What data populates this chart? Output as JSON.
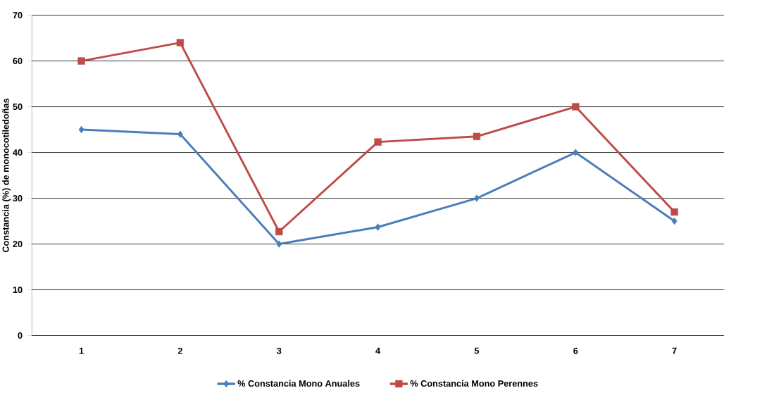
{
  "chart_data": {
    "type": "line",
    "ylabel": "Constancia (%) de monocotiledoñas",
    "categories": [
      "1",
      "2",
      "3",
      "4",
      "5",
      "6",
      "7"
    ],
    "series": [
      {
        "name": "% Constancia  Mono Anuales",
        "color": "#4a7ebb",
        "marker": "diamond",
        "values": [
          45,
          44,
          20,
          23.7,
          30,
          40,
          25
        ]
      },
      {
        "name": "% Constancia  Mono Perennes",
        "color": "#be4b48",
        "marker": "square",
        "values": [
          60,
          64,
          22.7,
          42.3,
          43.5,
          50,
          27
        ]
      }
    ],
    "ylim": [
      0,
      70
    ],
    "yticks": [
      0,
      10,
      20,
      30,
      40,
      50,
      60,
      70
    ],
    "grid": "y",
    "legend": "bottom",
    "line_style": "solid"
  }
}
